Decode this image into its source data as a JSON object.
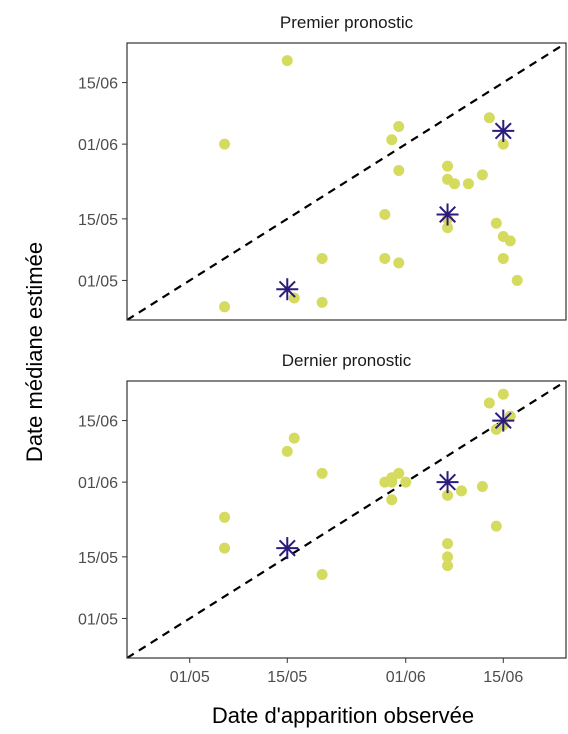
{
  "chart_data": {
    "type": "scatter",
    "xlabel": "Date d'apparition observée",
    "ylabel": "Date médiane estimée",
    "x_ticks": [
      "01/05",
      "15/05",
      "01/06",
      "15/06"
    ],
    "y_ticks": [
      "01/05",
      "15/05",
      "01/06",
      "15/06"
    ],
    "x_range": [
      "2021-04-22",
      "2021-06-24"
    ],
    "y_range": [
      "2021-04-22",
      "2021-06-24"
    ],
    "reference_line": "y = x",
    "legend": "none",
    "grid": false,
    "colors": {
      "points": "#d5db5e",
      "medians": "#2b1b7a",
      "reference": "#000000",
      "frame": "#333333"
    },
    "panels": [
      {
        "title": "Premier pronostic",
        "points": [
          [
            "2021-05-06",
            "2021-06-01"
          ],
          [
            "2021-05-15",
            "2021-06-20"
          ],
          [
            "2021-05-06",
            "2021-04-25"
          ],
          [
            "2021-05-16",
            "2021-04-27"
          ],
          [
            "2021-05-20",
            "2021-04-26"
          ],
          [
            "2021-05-20",
            "2021-05-06"
          ],
          [
            "2021-05-29",
            "2021-05-06"
          ],
          [
            "2021-05-31",
            "2021-05-05"
          ],
          [
            "2021-05-29",
            "2021-05-16"
          ],
          [
            "2021-05-30",
            "2021-06-02"
          ],
          [
            "2021-05-31",
            "2021-06-05"
          ],
          [
            "2021-05-31",
            "2021-05-26"
          ],
          [
            "2021-06-07",
            "2021-05-27"
          ],
          [
            "2021-06-07",
            "2021-05-24"
          ],
          [
            "2021-06-08",
            "2021-05-23"
          ],
          [
            "2021-06-10",
            "2021-05-23"
          ],
          [
            "2021-06-07",
            "2021-05-15"
          ],
          [
            "2021-06-07",
            "2021-05-13"
          ],
          [
            "2021-06-12",
            "2021-05-25"
          ],
          [
            "2021-06-13",
            "2021-06-07"
          ],
          [
            "2021-06-14",
            "2021-05-14"
          ],
          [
            "2021-06-15",
            "2021-05-06"
          ],
          [
            "2021-06-15",
            "2021-06-01"
          ],
          [
            "2021-06-15",
            "2021-05-11"
          ],
          [
            "2021-06-16",
            "2021-05-10"
          ],
          [
            "2021-06-17",
            "2021-05-01"
          ]
        ],
        "medians": [
          [
            "2021-05-15",
            "2021-04-29"
          ],
          [
            "2021-06-07",
            "2021-05-16"
          ],
          [
            "2021-06-15",
            "2021-06-04"
          ]
        ]
      },
      {
        "title": "Dernier pronostic",
        "points": [
          [
            "2021-05-06",
            "2021-05-24"
          ],
          [
            "2021-05-06",
            "2021-05-17"
          ],
          [
            "2021-05-15",
            "2021-06-08"
          ],
          [
            "2021-05-16",
            "2021-06-11"
          ],
          [
            "2021-05-20",
            "2021-06-03"
          ],
          [
            "2021-05-20",
            "2021-05-11"
          ],
          [
            "2021-05-29",
            "2021-06-01"
          ],
          [
            "2021-05-30",
            "2021-05-28"
          ],
          [
            "2021-05-30",
            "2021-06-01"
          ],
          [
            "2021-05-30",
            "2021-06-02"
          ],
          [
            "2021-05-31",
            "2021-06-03"
          ],
          [
            "2021-06-01",
            "2021-06-01"
          ],
          [
            "2021-06-07",
            "2021-05-29"
          ],
          [
            "2021-06-07",
            "2021-05-18"
          ],
          [
            "2021-06-07",
            "2021-05-15"
          ],
          [
            "2021-06-07",
            "2021-05-13"
          ],
          [
            "2021-06-09",
            "2021-05-30"
          ],
          [
            "2021-06-12",
            "2021-05-31"
          ],
          [
            "2021-06-13",
            "2021-06-19"
          ],
          [
            "2021-06-14",
            "2021-05-22"
          ],
          [
            "2021-06-15",
            "2021-06-21"
          ],
          [
            "2021-06-15",
            "2021-06-14"
          ],
          [
            "2021-06-16",
            "2021-06-16"
          ],
          [
            "2021-06-14",
            "2021-06-13"
          ]
        ],
        "medians": [
          [
            "2021-05-15",
            "2021-05-17"
          ],
          [
            "2021-06-07",
            "2021-06-01"
          ],
          [
            "2021-06-15",
            "2021-06-15"
          ]
        ]
      }
    ]
  }
}
